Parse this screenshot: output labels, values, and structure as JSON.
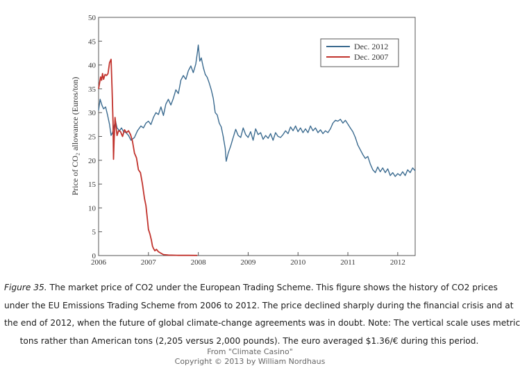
{
  "chart_data": {
    "type": "line",
    "ylabel": "Price of CO₂ allowance (Euros/ton)",
    "xlabel": "",
    "ylim": [
      0,
      50
    ],
    "xlim": [
      2006,
      2012.35
    ],
    "y_ticks": [
      "0",
      "5",
      "10",
      "15",
      "20",
      "25",
      "30",
      "35",
      "40",
      "45",
      "50"
    ],
    "x_ticks": [
      "2006",
      "2007",
      "2008",
      "2009",
      "2010",
      "2011",
      "2012"
    ],
    "grid": false,
    "legend_position": "top-right",
    "series": [
      {
        "name": "Dec. 2012",
        "color": "#3a6a8f",
        "points": [
          [
            2006.0,
            30.5
          ],
          [
            2006.03,
            32.8
          ],
          [
            2006.07,
            31.5
          ],
          [
            2006.1,
            30.8
          ],
          [
            2006.14,
            31.2
          ],
          [
            2006.18,
            29.5
          ],
          [
            2006.22,
            27.5
          ],
          [
            2006.25,
            25.2
          ],
          [
            2006.28,
            25.8
          ],
          [
            2006.31,
            27.2
          ],
          [
            2006.34,
            28.2
          ],
          [
            2006.37,
            26.8
          ],
          [
            2006.42,
            26.2
          ],
          [
            2006.46,
            26.8
          ],
          [
            2006.5,
            26.0
          ],
          [
            2006.55,
            25.8
          ],
          [
            2006.6,
            25.2
          ],
          [
            2006.65,
            24.2
          ],
          [
            2006.72,
            24.8
          ],
          [
            2006.78,
            26.2
          ],
          [
            2006.85,
            27.2
          ],
          [
            2006.9,
            26.8
          ],
          [
            2006.95,
            27.8
          ],
          [
            2007.0,
            28.2
          ],
          [
            2007.05,
            27.5
          ],
          [
            2007.1,
            29.0
          ],
          [
            2007.15,
            30.0
          ],
          [
            2007.2,
            29.6
          ],
          [
            2007.25,
            31.2
          ],
          [
            2007.3,
            29.4
          ],
          [
            2007.35,
            31.8
          ],
          [
            2007.4,
            32.8
          ],
          [
            2007.45,
            31.6
          ],
          [
            2007.5,
            33.0
          ],
          [
            2007.55,
            34.8
          ],
          [
            2007.6,
            34.0
          ],
          [
            2007.65,
            36.8
          ],
          [
            2007.7,
            37.8
          ],
          [
            2007.75,
            37.0
          ],
          [
            2007.8,
            38.8
          ],
          [
            2007.85,
            39.8
          ],
          [
            2007.9,
            38.4
          ],
          [
            2007.95,
            40.2
          ],
          [
            2007.98,
            42.5
          ],
          [
            2008.0,
            44.2
          ],
          [
            2008.03,
            40.8
          ],
          [
            2008.06,
            41.5
          ],
          [
            2008.1,
            39.5
          ],
          [
            2008.14,
            38.0
          ],
          [
            2008.18,
            37.4
          ],
          [
            2008.22,
            36.2
          ],
          [
            2008.26,
            34.8
          ],
          [
            2008.3,
            33.0
          ],
          [
            2008.34,
            30.0
          ],
          [
            2008.38,
            29.5
          ],
          [
            2008.42,
            27.8
          ],
          [
            2008.46,
            27.0
          ],
          [
            2008.5,
            25.0
          ],
          [
            2008.54,
            22.5
          ],
          [
            2008.56,
            19.8
          ],
          [
            2008.6,
            21.5
          ],
          [
            2008.65,
            23.0
          ],
          [
            2008.7,
            24.8
          ],
          [
            2008.75,
            26.5
          ],
          [
            2008.8,
            25.2
          ],
          [
            2008.85,
            24.8
          ],
          [
            2008.9,
            26.8
          ],
          [
            2008.95,
            25.4
          ],
          [
            2009.0,
            24.8
          ],
          [
            2009.05,
            26.0
          ],
          [
            2009.1,
            24.2
          ],
          [
            2009.15,
            26.6
          ],
          [
            2009.2,
            25.4
          ],
          [
            2009.25,
            25.8
          ],
          [
            2009.3,
            24.4
          ],
          [
            2009.35,
            25.2
          ],
          [
            2009.4,
            24.6
          ],
          [
            2009.45,
            25.6
          ],
          [
            2009.5,
            24.2
          ],
          [
            2009.55,
            25.8
          ],
          [
            2009.6,
            25.0
          ],
          [
            2009.65,
            24.8
          ],
          [
            2009.7,
            25.4
          ],
          [
            2009.75,
            26.2
          ],
          [
            2009.8,
            25.6
          ],
          [
            2009.85,
            27.0
          ],
          [
            2009.9,
            26.2
          ],
          [
            2009.95,
            27.2
          ],
          [
            2010.0,
            26.0
          ],
          [
            2010.05,
            26.8
          ],
          [
            2010.1,
            25.8
          ],
          [
            2010.15,
            26.6
          ],
          [
            2010.2,
            25.8
          ],
          [
            2010.25,
            27.2
          ],
          [
            2010.3,
            26.2
          ],
          [
            2010.35,
            26.8
          ],
          [
            2010.4,
            25.8
          ],
          [
            2010.45,
            26.4
          ],
          [
            2010.5,
            25.6
          ],
          [
            2010.55,
            26.2
          ],
          [
            2010.6,
            25.8
          ],
          [
            2010.65,
            26.6
          ],
          [
            2010.7,
            27.8
          ],
          [
            2010.75,
            28.4
          ],
          [
            2010.8,
            28.2
          ],
          [
            2010.85,
            28.6
          ],
          [
            2010.9,
            27.8
          ],
          [
            2010.95,
            28.4
          ],
          [
            2011.0,
            27.6
          ],
          [
            2011.05,
            26.8
          ],
          [
            2011.1,
            26.0
          ],
          [
            2011.15,
            24.8
          ],
          [
            2011.2,
            23.2
          ],
          [
            2011.25,
            22.2
          ],
          [
            2011.3,
            21.2
          ],
          [
            2011.35,
            20.4
          ],
          [
            2011.4,
            20.8
          ],
          [
            2011.45,
            19.2
          ],
          [
            2011.5,
            18.0
          ],
          [
            2011.55,
            17.4
          ],
          [
            2011.6,
            18.6
          ],
          [
            2011.65,
            17.6
          ],
          [
            2011.7,
            18.4
          ],
          [
            2011.75,
            17.4
          ],
          [
            2011.8,
            18.2
          ],
          [
            2011.85,
            16.8
          ],
          [
            2011.9,
            17.4
          ],
          [
            2011.95,
            16.6
          ],
          [
            2012.0,
            17.2
          ],
          [
            2012.05,
            16.8
          ],
          [
            2012.1,
            17.6
          ],
          [
            2012.15,
            16.8
          ],
          [
            2012.2,
            18.0
          ],
          [
            2012.25,
            17.4
          ],
          [
            2012.3,
            18.4
          ],
          [
            2012.35,
            17.8
          ]
        ]
      },
      {
        "name": "Dec. 2007",
        "color": "#c1322c",
        "points": [
          [
            2006.0,
            35.0
          ],
          [
            2006.02,
            36.2
          ],
          [
            2006.04,
            37.5
          ],
          [
            2006.06,
            36.8
          ],
          [
            2006.08,
            38.2
          ],
          [
            2006.1,
            37.0
          ],
          [
            2006.13,
            38.0
          ],
          [
            2006.16,
            37.8
          ],
          [
            2006.19,
            38.2
          ],
          [
            2006.22,
            40.5
          ],
          [
            2006.25,
            41.2
          ],
          [
            2006.27,
            35.0
          ],
          [
            2006.29,
            28.0
          ],
          [
            2006.3,
            20.2
          ],
          [
            2006.31,
            24.0
          ],
          [
            2006.33,
            29.0
          ],
          [
            2006.35,
            27.0
          ],
          [
            2006.37,
            25.2
          ],
          [
            2006.4,
            26.2
          ],
          [
            2006.44,
            26.0
          ],
          [
            2006.48,
            25.0
          ],
          [
            2006.52,
            26.4
          ],
          [
            2006.56,
            25.8
          ],
          [
            2006.6,
            26.2
          ],
          [
            2006.64,
            25.4
          ],
          [
            2006.68,
            24.0
          ],
          [
            2006.72,
            21.5
          ],
          [
            2006.76,
            20.5
          ],
          [
            2006.8,
            18.0
          ],
          [
            2006.84,
            17.4
          ],
          [
            2006.88,
            15.0
          ],
          [
            2006.92,
            12.0
          ],
          [
            2006.95,
            10.5
          ],
          [
            2006.98,
            7.5
          ],
          [
            2007.0,
            5.5
          ],
          [
            2007.03,
            4.5
          ],
          [
            2007.06,
            3.2
          ],
          [
            2007.08,
            2.0
          ],
          [
            2007.1,
            1.5
          ],
          [
            2007.13,
            1.0
          ],
          [
            2007.16,
            1.3
          ],
          [
            2007.2,
            0.8
          ],
          [
            2007.25,
            0.5
          ],
          [
            2007.3,
            0.2
          ],
          [
            2007.4,
            0.1
          ],
          [
            2007.6,
            0.05
          ],
          [
            2007.8,
            0.04
          ],
          [
            2007.98,
            0.03
          ]
        ]
      }
    ]
  },
  "caption": {
    "fig_label": "Figure 35.",
    "line1": " The market price of CO2 under the European Trading Scheme. This figure shows the history of CO2 prices",
    "line2": "under the EU Emissions Trading Scheme from 2006 to 2012. The price declined sharply during the financial crisis and at",
    "line3": "the end of 2012, when the future of global climate-change agreements was in doubt. Note: The vertical scale uses metric",
    "line4": "tons rather than American tons (2,205 versus 2,000 pounds). The euro averaged $1.36/€ during this period."
  },
  "credit": {
    "line1": "From \"Climate Casino\"",
    "line2": "Copyright © 2013 by William Nordhaus"
  }
}
